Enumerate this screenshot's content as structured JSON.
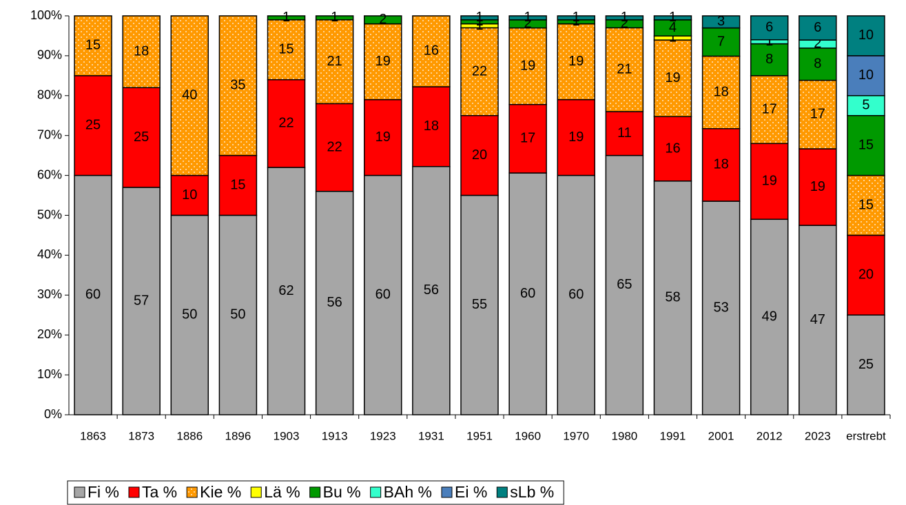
{
  "chart_data": {
    "type": "stacked_percent_bar",
    "categories": [
      "1863",
      "1873",
      "1886",
      "1896",
      "1903",
      "1913",
      "1923",
      "1931",
      "1951",
      "1960",
      "1970",
      "1980",
      "1991",
      "2001",
      "2012",
      "2023",
      "erstrebt"
    ],
    "series": [
      {
        "name": "Fi %",
        "color": "#a6a6a6",
        "values": [
          60,
          57,
          50,
          50,
          62,
          56,
          60,
          56,
          55,
          60,
          60,
          65,
          58,
          53,
          49,
          47,
          25
        ]
      },
      {
        "name": "Ta %",
        "color": "#ff0000",
        "values": [
          25,
          25,
          10,
          15,
          22,
          22,
          19,
          18,
          20,
          17,
          19,
          11,
          16,
          18,
          19,
          19,
          20
        ]
      },
      {
        "name": "Kie %",
        "color": "#ff9900",
        "values": [
          15,
          18,
          40,
          35,
          15,
          21,
          19,
          16,
          22,
          19,
          19,
          21,
          19,
          18,
          17,
          17,
          15
        ]
      },
      {
        "name": "Lä %",
        "color": "#ffff00",
        "values": [
          0,
          0,
          0,
          0,
          0,
          0,
          0,
          0,
          1,
          0,
          0,
          0,
          1,
          0,
          0,
          0,
          0
        ]
      },
      {
        "name": "Bu %",
        "color": "#009900",
        "values": [
          0,
          0,
          0,
          0,
          1,
          1,
          2,
          0,
          1,
          2,
          1,
          2,
          4,
          7,
          8,
          8,
          15
        ]
      },
      {
        "name": "BAh %",
        "color": "#33ffcc",
        "values": [
          0,
          0,
          0,
          0,
          0,
          0,
          0,
          0,
          0,
          0,
          0,
          0,
          0,
          0,
          1,
          2,
          5
        ]
      },
      {
        "name": "Ei %",
        "color": "#4a7ebb",
        "values": [
          0,
          0,
          0,
          0,
          0,
          0,
          0,
          0,
          0,
          0,
          0,
          0,
          0,
          0,
          0,
          0,
          10
        ]
      },
      {
        "name": "sLb %",
        "color": "#008080",
        "values": [
          0,
          0,
          0,
          0,
          0,
          0,
          0,
          0,
          1,
          1,
          1,
          1,
          1,
          3,
          6,
          6,
          10
        ]
      }
    ],
    "ylim": [
      0,
      100
    ],
    "yticks": [
      {
        "value": 0,
        "label": "0%"
      },
      {
        "value": 10,
        "label": "10%"
      },
      {
        "value": 20,
        "label": "20%"
      },
      {
        "value": 30,
        "label": "30%"
      },
      {
        "value": 40,
        "label": "40%"
      },
      {
        "value": 50,
        "label": "50%"
      },
      {
        "value": 60,
        "label": "60%"
      },
      {
        "value": 70,
        "label": "70%"
      },
      {
        "value": 80,
        "label": "80%"
      },
      {
        "value": 90,
        "label": "90%"
      },
      {
        "value": 100,
        "label": "100%"
      }
    ],
    "patterned_series": [
      "Kie %"
    ],
    "legend": "bottom"
  }
}
